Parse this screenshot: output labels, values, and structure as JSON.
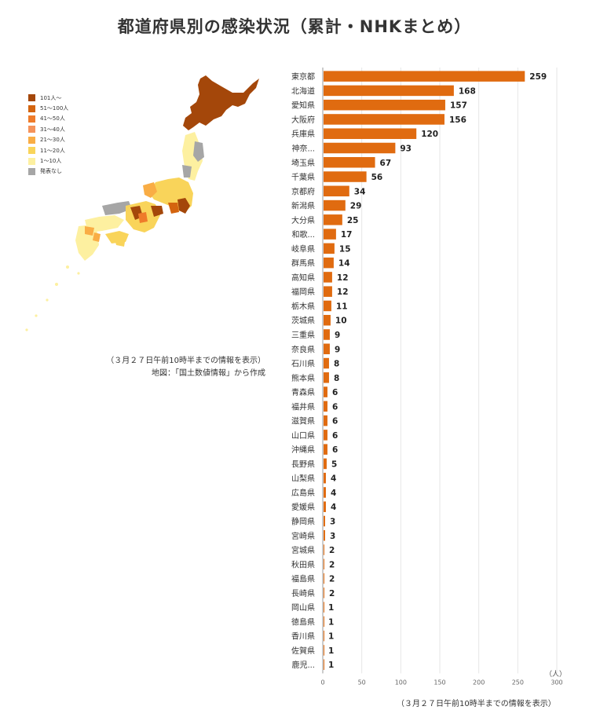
{
  "title": "都道府県別の感染状況（累計・NHKまとめ）",
  "legend": {
    "items": [
      {
        "label": "101人～",
        "color": "#a4470a"
      },
      {
        "label": "51～100人",
        "color": "#d4640f"
      },
      {
        "label": "41～50人",
        "color": "#ef7b2a"
      },
      {
        "label": "31～40人",
        "color": "#f5935a"
      },
      {
        "label": "21～30人",
        "color": "#f9ad45"
      },
      {
        "label": "11～20人",
        "color": "#f9d45a"
      },
      {
        "label": "1～10人",
        "color": "#fdf0a0"
      },
      {
        "label": "発表なし",
        "color": "#a6a6a6"
      }
    ]
  },
  "map_notes": {
    "line1": "（３月２７日午前10時半までの情報を表示）",
    "line2": "地図：「国土数値情報」から作成"
  },
  "bottom_note": "（３月２７日午前10時半までの情報を表示）",
  "colors": {
    "bar": "#e06b10",
    "grid": "#e6e6e6"
  },
  "chart_data": {
    "type": "bar",
    "orientation": "horizontal",
    "categories": [
      "東京都",
      "北海道",
      "愛知県",
      "大阪府",
      "兵庫県",
      "神奈...",
      "埼玉県",
      "千葉県",
      "京都府",
      "新潟県",
      "大分県",
      "和歌...",
      "岐阜県",
      "群馬県",
      "高知県",
      "福岡県",
      "栃木県",
      "茨城県",
      "三重県",
      "奈良県",
      "石川県",
      "熊本県",
      "青森県",
      "福井県",
      "滋賀県",
      "山口県",
      "沖縄県",
      "長野県",
      "山梨県",
      "広島県",
      "愛媛県",
      "静岡県",
      "宮崎県",
      "宮城県",
      "秋田県",
      "福島県",
      "長崎県",
      "岡山県",
      "徳島県",
      "香川県",
      "佐賀県",
      "鹿児..."
    ],
    "values": [
      259,
      168,
      157,
      156,
      120,
      93,
      67,
      56,
      34,
      29,
      25,
      17,
      15,
      14,
      12,
      12,
      11,
      10,
      9,
      9,
      8,
      8,
      6,
      6,
      6,
      6,
      6,
      5,
      4,
      4,
      4,
      3,
      3,
      2,
      2,
      2,
      2,
      1,
      1,
      1,
      1,
      1
    ],
    "xlim": [
      0,
      300
    ],
    "xticks": [
      0,
      50,
      100,
      150,
      200,
      250,
      300
    ],
    "unit": "（人）",
    "grid": true
  }
}
